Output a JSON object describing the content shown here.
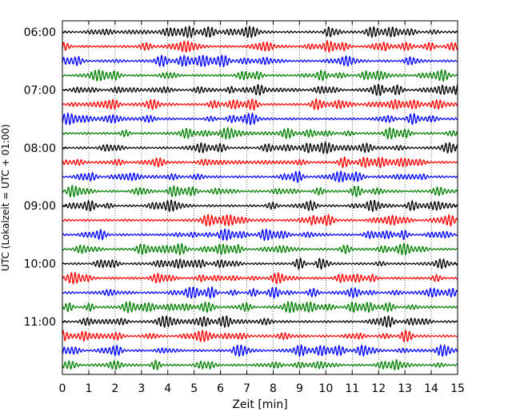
{
  "chart_data": {
    "type": "line",
    "title": "",
    "xlabel": "Zeit  [min]",
    "ylabel": "UTC (Lokalzeit = UTC + 01:00)",
    "xlim": [
      0,
      15
    ],
    "x_ticks": [
      "0",
      "1",
      "2",
      "3",
      "4",
      "5",
      "6",
      "7",
      "8",
      "9",
      "10",
      "11",
      "12",
      "13",
      "14",
      "15"
    ],
    "y_ticks": [
      "06:00",
      "07:00",
      "08:00",
      "09:00",
      "10:00",
      "11:00"
    ],
    "grid": "vertical-dotted",
    "trace_count": 24,
    "trace_start": "06:00",
    "trace_interval_min": 15,
    "colors": [
      "#000000",
      "#ff0000",
      "#0000ff",
      "#008000"
    ]
  }
}
